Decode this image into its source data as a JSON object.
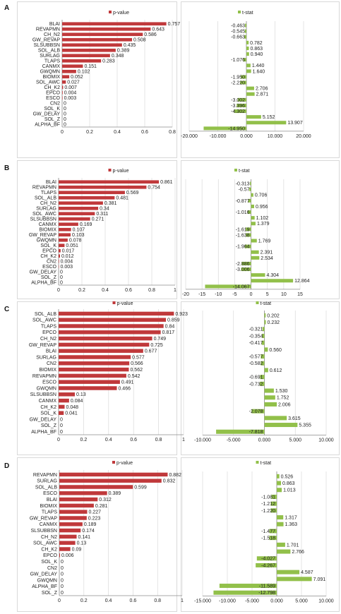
{
  "chart_data": [
    {
      "panel": "A",
      "charts": [
        {
          "type": "bar",
          "orientation": "horizontal",
          "title": "p-value",
          "categories": [
            "BLAI",
            "REVAPMN",
            "CH_N2",
            "GW_REVAP",
            "SLSUBBSN",
            "SOL_ALB",
            "SURLAG",
            "TLAPS",
            "CANMX",
            "GWQMN",
            "BIOMIX",
            "SOL_AWC",
            "CH_K2",
            "EPCO",
            "ESCO",
            "CN2",
            "SOL_K",
            "GW_DELAY",
            "SOL_Z",
            "ALPHA_BF"
          ],
          "values": [
            0.757,
            0.643,
            0.586,
            0.508,
            0.435,
            0.389,
            0.348,
            0.283,
            0.151,
            0.102,
            0.052,
            0.027,
            0.007,
            0.004,
            0.003,
            0,
            0,
            0,
            0,
            0
          ],
          "data_labels": [
            "0.757",
            "0.643",
            "0.586",
            "0.508",
            "0.435",
            "0.389",
            "0.348",
            "0.283",
            "0.151",
            "0.102",
            "0.052",
            "0.027",
            "0.007",
            "0.004",
            "0.003",
            "0",
            "0",
            "0",
            "0",
            "0"
          ],
          "xlim": [
            0,
            0.8
          ],
          "ticks": [
            0,
            0.2,
            0.4,
            0.6,
            0.8
          ],
          "tick_labels": [
            "0",
            "0.2",
            "0.4",
            "0.6",
            "0.8"
          ],
          "color": "#c0393b",
          "grid": true,
          "legend": "top"
        },
        {
          "type": "bar",
          "orientation": "horizontal",
          "title": "t-stat",
          "values": [
            -0.463,
            -0.545,
            -0.663,
            0.782,
            0.863,
            0.94,
            -1.076,
            1.44,
            1.64,
            -1.95,
            -2.22,
            2.706,
            2.871,
            -3.002,
            -3.396,
            -4.302,
            5.152,
            13.907,
            -14.95
          ],
          "data_labels": [
            "-0.463",
            "-0.545",
            "-0.663",
            "0.782",
            "0.863",
            "0.940",
            "-1.076",
            "1.440",
            "1.640",
            "-1.950",
            "-2.220",
            "2.706",
            "2.871",
            "-3.002",
            "-3.396",
            "-4.302",
            "5.152",
            "13.907",
            "-14.950"
          ],
          "xlim": [
            -20,
            20
          ],
          "ticks": [
            -20,
            -10,
            0,
            10,
            20
          ],
          "tick_labels": [
            "-20.000",
            "-10.000",
            "0.000",
            "10.000",
            "20.000"
          ],
          "color": "#92c04a",
          "grid": true,
          "legend": "top"
        }
      ]
    },
    {
      "panel": "B",
      "charts": [
        {
          "type": "bar",
          "orientation": "horizontal",
          "title": "p-value",
          "categories": [
            "BLAI",
            "REVAPMN",
            "TLAPS",
            "SOL_ALB",
            "CH_N2",
            "SURLAG",
            "SOL_AWC",
            "SLSUBBSN",
            "CANMX",
            "BIOMIX",
            "GW_REVAP",
            "GWQMN",
            "SOL_K",
            "EPCO",
            "CH_K2",
            "CN2",
            "ESCO",
            "GW_DELAY",
            "SOL_Z",
            "ALPHA_BF"
          ],
          "values": [
            0.861,
            0.754,
            0.569,
            0.481,
            0.381,
            0.34,
            0.311,
            0.271,
            0.169,
            0.107,
            0.103,
            0.078,
            0.051,
            0.017,
            0.012,
            0.004,
            0.003,
            0,
            0,
            0
          ],
          "data_labels": [
            "0.861",
            "0.754",
            "0.569",
            "0.481",
            "0.381",
            "0.34",
            "0.311",
            "0.271",
            "0.169",
            "0.107",
            "0.103",
            "0.078",
            "0.051",
            "0.017",
            "0.012",
            "0.004",
            "0.003",
            "0",
            "0",
            "0"
          ],
          "xlim": [
            0,
            1
          ],
          "ticks": [
            0,
            0.2,
            0.4,
            0.6,
            0.8,
            1
          ],
          "tick_labels": [
            "0",
            "0.2",
            "0.4",
            "0.6",
            "0.8",
            "1"
          ],
          "color": "#c0393b",
          "grid": true,
          "legend": "top"
        },
        {
          "type": "bar",
          "orientation": "horizontal",
          "title": "t-stat",
          "values": [
            -0.313,
            -0.57,
            0.706,
            -0.877,
            0.956,
            -1.016,
            1.102,
            1.379,
            -1.619,
            -1.638,
            1.769,
            -1.964,
            2.391,
            2.534,
            -2.886,
            -3.006,
            4.304,
            12.864,
            -14.067
          ],
          "data_labels": [
            "-0.313",
            "-0.57",
            "0.706",
            "-0.877",
            "0.956",
            "-1.016",
            "1.102",
            "1.379",
            "-1.619",
            "-1.638",
            "1.769",
            "-1.964",
            "2.391",
            "2.534",
            "-2.886",
            "-3.006",
            "4.304",
            "12.864",
            "-14.067"
          ],
          "xlim": [
            -20,
            15
          ],
          "ticks": [
            -20,
            -15,
            -10,
            -5,
            0,
            5,
            10,
            15
          ],
          "tick_labels": [
            "-20",
            "-15",
            "-10",
            "-5",
            "0",
            "5",
            "10",
            "15"
          ],
          "color": "#92c04a",
          "grid": true,
          "legend": "top"
        }
      ]
    },
    {
      "panel": "C",
      "charts": [
        {
          "type": "bar",
          "orientation": "horizontal",
          "title": "p-value",
          "categories": [
            "SOL_ALB",
            "SOL_AWC",
            "TLAPS",
            "EPCO",
            "CH_N2",
            "GW_REVAP",
            "BLAI",
            "SURLAG",
            "CN2",
            "BIOMIX",
            "REVAPMN",
            "ESCO",
            "GWQMN",
            "SLSUBBSN",
            "CANMX",
            "CH_K2",
            "SOL_K",
            "GW_DELAY",
            "SOL_Z",
            "ALPHA_BF"
          ],
          "values": [
            0.923,
            0.859,
            0.84,
            0.817,
            0.749,
            0.725,
            0.677,
            0.577,
            0.566,
            0.562,
            0.542,
            0.491,
            0.466,
            0.13,
            0.084,
            0.048,
            0.041,
            0,
            0,
            0
          ],
          "data_labels": [
            "0.923",
            "0.859",
            "0.84",
            "0.817",
            "0.749",
            "0.725",
            "0.677",
            "0.577",
            "0.566",
            "0.562",
            "0.542",
            "0.491",
            "0.466",
            "0.13",
            "0.084",
            "0.048",
            "0.041",
            "0",
            "0",
            "0"
          ],
          "xlim": [
            0,
            1
          ],
          "ticks": [
            0,
            0.2,
            0.4,
            0.6,
            0.8,
            1
          ],
          "tick_labels": [
            "0",
            "0.2",
            "0.4",
            "0.6",
            "0.8",
            "1"
          ],
          "color": "#c0393b",
          "grid": true,
          "legend": "top"
        },
        {
          "type": "bar",
          "orientation": "horizontal",
          "title": "t-stat",
          "values": [
            0.202,
            0.232,
            -0.321,
            -0.354,
            -0.417,
            0.56,
            -0.577,
            -0.582,
            0.612,
            -0.691,
            -0.732,
            1.53,
            1.752,
            2.006,
            -2.078,
            3.615,
            5.355,
            -7.818
          ],
          "data_labels": [
            "0.202",
            "0.232",
            "-0.321",
            "-0.354",
            "-0.417",
            "0.560",
            "-0.577",
            "-0.582",
            "0.612",
            "-0.691",
            "-0.732",
            "1.530",
            "1.752",
            "2.006",
            "-2.078",
            "3.615",
            "5.355",
            "-7.818"
          ],
          "xlim": [
            -10,
            10
          ],
          "ticks": [
            -10,
            -5,
            0,
            5,
            10
          ],
          "tick_labels": [
            "-10.000",
            "-5.000",
            "0.000",
            "5.000",
            "10.000"
          ],
          "color": "#92c04a",
          "grid": true,
          "legend": "top"
        }
      ]
    },
    {
      "panel": "D",
      "charts": [
        {
          "type": "bar",
          "orientation": "horizontal",
          "title": "p-value",
          "categories": [
            "REVAPMN",
            "SURLAG",
            "SOL_ALB",
            "ESCO",
            "BLAI",
            "BIOMIX",
            "TLAPS",
            "GW_REVAP",
            "CANMX",
            "SLSUBBSN",
            "CH_N2",
            "SOL_AWC",
            "CH_K2",
            "EPCO",
            "SOL_K",
            "CN2",
            "GW_DELAY",
            "GWQMN",
            "ALPHA_BF",
            "SOL_Z"
          ],
          "values": [
            0.882,
            0.832,
            0.599,
            0.389,
            0.312,
            0.281,
            0.227,
            0.223,
            0.189,
            0.174,
            0.141,
            0.13,
            0.09,
            0.006,
            0,
            0,
            0,
            0,
            0,
            0
          ],
          "data_labels": [
            "0.882",
            "0.832",
            "0.599",
            "0.389",
            "0.312",
            "0.281",
            "0.227",
            "0.223",
            "0.189",
            "0.174",
            "0.141",
            "0.13",
            "0.09",
            "0.006",
            "0",
            "0",
            "0",
            "0",
            "0",
            "0"
          ],
          "xlim": [
            0,
            1
          ],
          "ticks": [
            0,
            0.2,
            0.4,
            0.6,
            0.8,
            1
          ],
          "tick_labels": [
            "0",
            "0.2",
            "0.4",
            "0.6",
            "0.8",
            "1"
          ],
          "color": "#c0393b",
          "grid": true,
          "legend": "top"
        },
        {
          "type": "bar",
          "orientation": "horizontal",
          "title": "t-stat",
          "values": [
            0.526,
            0.863,
            1.013,
            -1.081,
            -1.212,
            -1.22,
            1.317,
            1.363,
            -1.477,
            -1.518,
            1.701,
            2.766,
            -4.027,
            -4.267,
            4.587,
            7.091,
            -11.589,
            -12.798
          ],
          "data_labels": [
            "0.526",
            "0.863",
            "1.013",
            "-1.081",
            "-1.212",
            "-1.220",
            "1.317",
            "1.363",
            "-1.477",
            "-1.518",
            "1.701",
            "2.766",
            "-4.027",
            "-4.267",
            "4.587",
            "7.091",
            "-11.589",
            "-12.798"
          ],
          "xlim": [
            -15,
            10
          ],
          "ticks": [
            -15,
            -10,
            -5,
            0,
            5,
            10
          ],
          "tick_labels": [
            "-15.000",
            "-10.000",
            "-5.000",
            "0.000",
            "5.000",
            "10.000"
          ],
          "color": "#92c04a",
          "grid": true,
          "legend": "top"
        }
      ]
    }
  ]
}
